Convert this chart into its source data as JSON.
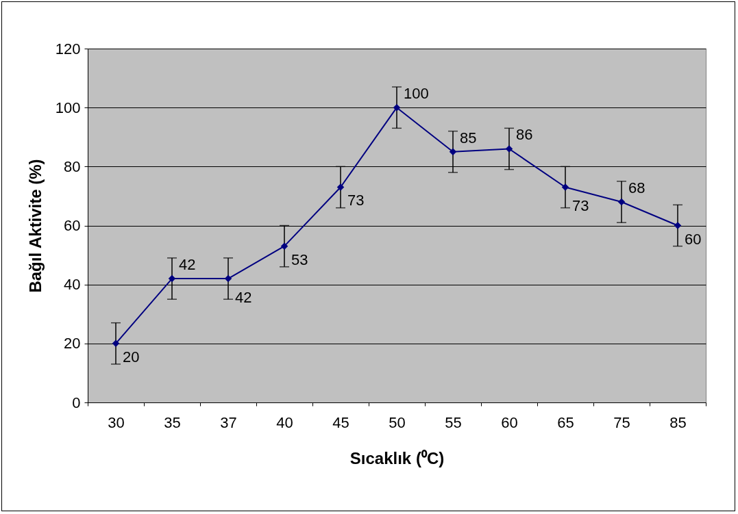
{
  "chart_data": {
    "type": "line",
    "xlabel": "Sıcaklık (⁰C)",
    "ylabel": "Bağıl Aktivite (%)",
    "categories": [
      "30",
      "35",
      "37",
      "40",
      "45",
      "50",
      "55",
      "60",
      "65",
      "75",
      "85"
    ],
    "series": [
      {
        "color": "#000080",
        "values": [
          20,
          42,
          42,
          53,
          73,
          100,
          85,
          86,
          73,
          68,
          60
        ],
        "errors": [
          7,
          7,
          7,
          7,
          7,
          7,
          7,
          7,
          7,
          7,
          7
        ]
      }
    ],
    "ylim": [
      0,
      120
    ],
    "yticks": [
      0,
      20,
      40,
      60,
      80,
      100,
      120
    ],
    "grid": "y",
    "marker": "diamond",
    "line_style": "solid",
    "data_labels": true
  }
}
